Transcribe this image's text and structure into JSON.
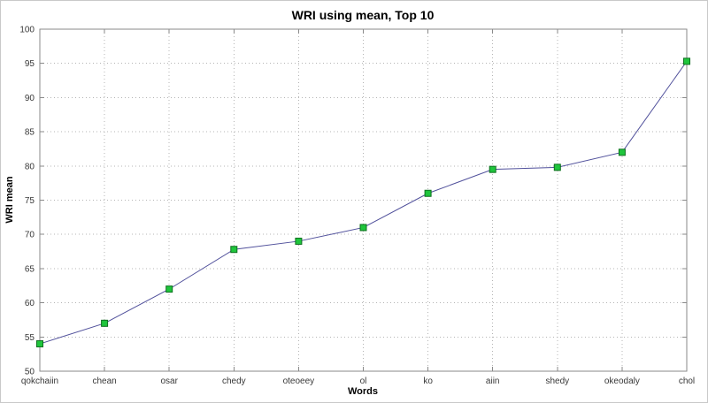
{
  "chart_data": {
    "type": "line",
    "title": "WRI using mean, Top 10",
    "xlabel": "Words",
    "ylabel": "WRI mean",
    "categories": [
      "qokchaiin",
      "chean",
      "osar",
      "chedy",
      "oteoeey",
      "ol",
      "ko",
      "aiin",
      "shedy",
      "okeodaly",
      "chol"
    ],
    "values": [
      54,
      57,
      62,
      67.8,
      69,
      71,
      76,
      79.5,
      79.8,
      82,
      95.3
    ],
    "ylim": [
      50,
      100
    ],
    "ytick_step": 5,
    "yticks": [
      50,
      55,
      60,
      65,
      70,
      75,
      80,
      85,
      90,
      95,
      100
    ],
    "grid": "on",
    "legend": "none",
    "colors": {
      "line": "#50509b",
      "marker_fill": "#1fc53c",
      "marker_edge": "#0e6f1f",
      "axis_box": "#8a8a8a",
      "gridline": "#b4b4b4",
      "tick_text": "#383838",
      "title_text": "#000000"
    }
  }
}
